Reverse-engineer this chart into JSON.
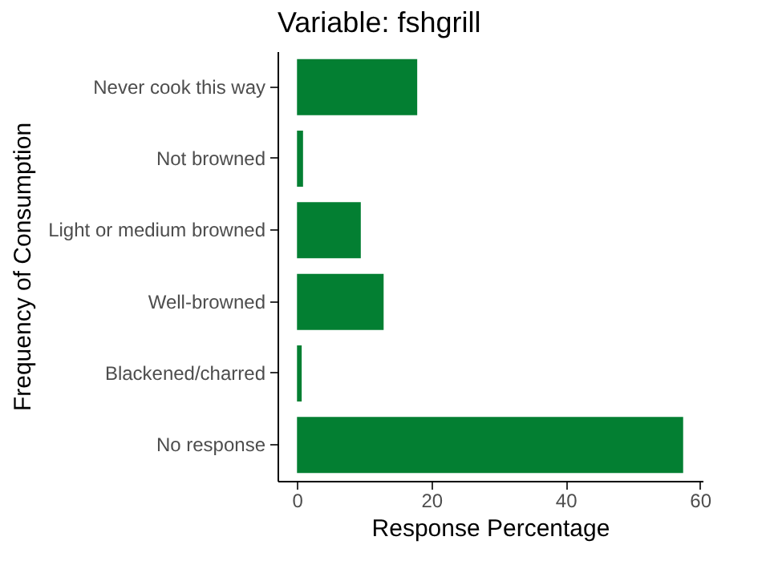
{
  "chart_data": {
    "type": "bar",
    "orientation": "horizontal",
    "title": "Variable: fshgrill",
    "xlabel": "Response Percentage",
    "ylabel": "Frequency of Consumption",
    "categories": [
      "Never cook this way",
      "Not browned",
      "Light or medium browned",
      "Well-browned",
      "Blackened/charred",
      "No response"
    ],
    "values": [
      17.9,
      0.9,
      9.5,
      12.9,
      0.7,
      57.5
    ],
    "color": "#037f32",
    "xlim": [
      -2.9,
      60.4
    ],
    "xticks": [
      0,
      20,
      40,
      60
    ],
    "grid": false
  }
}
